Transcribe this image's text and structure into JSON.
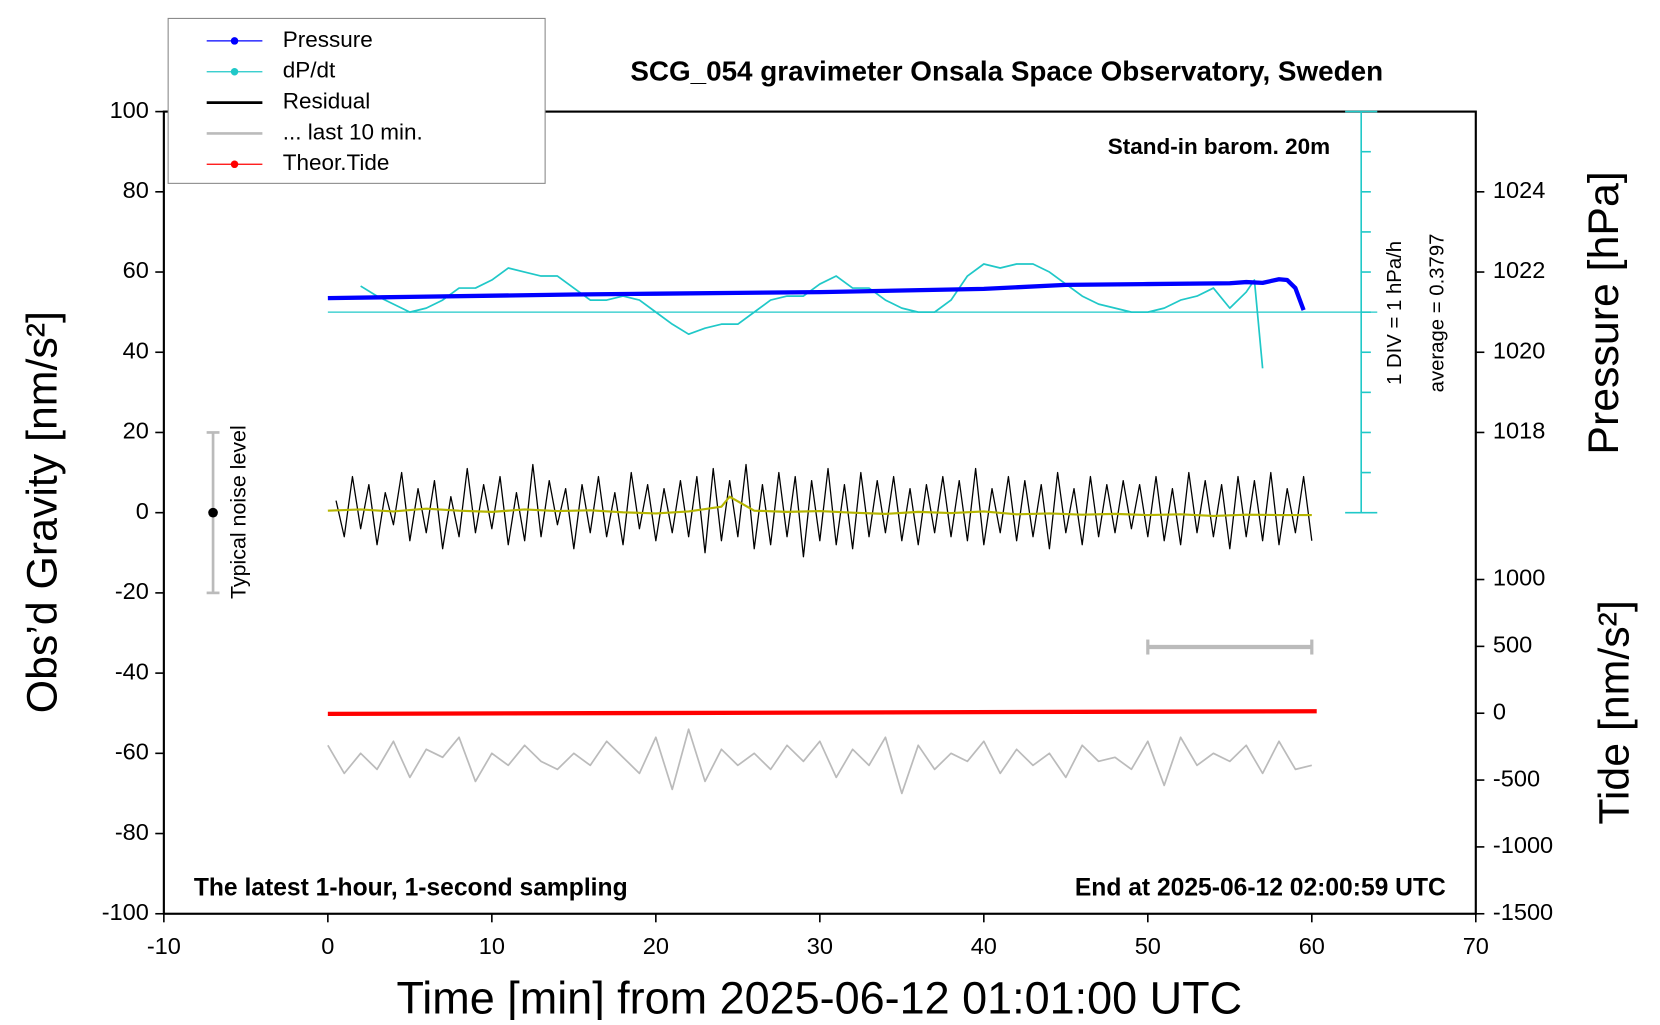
{
  "chart_data": {
    "type": "line",
    "title": "SCG_054 gravimeter Onsala Space Observatory, Sweden",
    "xlabel": "Time [min] from 2025-06-12 01:01:00 UTC",
    "ylabel": "Obs’d Gravity [nm/s²]",
    "y2label": "Pressure [hPa]",
    "y4label": "Tide [nm/s²]",
    "annotations": {
      "barometer": "Stand-in barom. 20m",
      "sampling": "The latest 1-hour, 1-second sampling",
      "end": "End at 2025-06-12 02:00:59 UTC",
      "div": "1 DIV = 1 hPa/h",
      "average_text": "average = 0.3797",
      "noise": "Typical noise level"
    },
    "xlim": [
      -10,
      70
    ],
    "xticks": [
      -10,
      0,
      10,
      20,
      30,
      40,
      50,
      60,
      70
    ],
    "ylim": [
      -100,
      100
    ],
    "yticks": [
      -100,
      -80,
      -60,
      -40,
      -20,
      0,
      20,
      40,
      60,
      80,
      100
    ],
    "y2lim": [
      1006,
      1026
    ],
    "y2ticks": [
      1018,
      1020,
      1022,
      1024
    ],
    "y3lim": [
      -4.6203,
      5.3797
    ],
    "y3ticks": [
      -4.6203,
      -3.6203,
      -2.6203,
      -1.6203,
      -0.6203,
      0.3797,
      1.3797,
      2.3797,
      3.3797,
      4.3797,
      5.3797
    ],
    "average": 0.3797,
    "y4lim": [
      -1500,
      4500
    ],
    "y4ticks": [
      -1500,
      -1000,
      -500,
      0,
      500,
      1000
    ],
    "noise_bar": {
      "x": -7,
      "value": 0,
      "error": 20
    },
    "last10_bar": {
      "x": [
        50,
        60
      ],
      "y": -33.5
    },
    "series": [
      {
        "name": "Pressure",
        "color": "#0000ff",
        "axis": "y2",
        "legend_marker": true,
        "x": [
          0,
          5,
          10,
          15,
          20,
          25,
          30,
          35,
          40,
          45,
          50,
          55,
          56,
          57,
          58,
          58.5,
          59,
          59.5
        ],
        "values": [
          1021.35,
          1021.38,
          1021.41,
          1021.44,
          1021.46,
          1021.48,
          1021.5,
          1021.54,
          1021.58,
          1021.68,
          1021.7,
          1021.72,
          1021.75,
          1021.73,
          1021.82,
          1021.8,
          1021.6,
          1021.05
        ]
      },
      {
        "name": "dP/dt",
        "color": "#20c8c8",
        "axis": "y3",
        "legend_marker": true,
        "x": [
          2,
          3,
          4,
          5,
          6,
          7,
          8,
          9,
          10,
          11,
          12,
          13,
          14,
          15,
          16,
          17,
          18,
          19,
          20,
          21,
          22,
          23,
          24,
          25,
          26,
          27,
          28,
          29,
          30,
          31,
          32,
          33,
          34,
          35,
          36,
          37,
          38,
          39,
          40,
          41,
          42,
          43,
          44,
          45,
          46,
          47,
          48,
          49,
          50,
          51,
          52,
          53,
          54,
          55,
          56,
          56.5,
          57
        ],
        "values": [
          1.03,
          0.78,
          0.58,
          0.38,
          0.48,
          0.68,
          0.98,
          0.98,
          1.18,
          1.48,
          1.38,
          1.28,
          1.28,
          0.98,
          0.68,
          0.68,
          0.78,
          0.68,
          0.38,
          0.08,
          -0.17,
          -0.02,
          0.08,
          0.08,
          0.38,
          0.68,
          0.78,
          0.78,
          1.08,
          1.28,
          0.98,
          0.98,
          0.68,
          0.48,
          0.38,
          0.38,
          0.68,
          1.28,
          1.58,
          1.48,
          1.58,
          1.58,
          1.38,
          1.08,
          0.78,
          0.58,
          0.48,
          0.38,
          0.38,
          0.48,
          0.68,
          0.78,
          0.98,
          0.48,
          0.88,
          1.18,
          -1.02
        ]
      },
      {
        "name": "Residual",
        "color": "#000000",
        "x": [
          0.5,
          1,
          1.5,
          2,
          2.5,
          3,
          3.5,
          4,
          4.5,
          5,
          5.5,
          6,
          6.5,
          7,
          7.5,
          8,
          8.5,
          9,
          9.5,
          10,
          10.5,
          11,
          11.5,
          12,
          12.5,
          13,
          13.5,
          14,
          14.5,
          15,
          15.5,
          16,
          16.5,
          17,
          17.5,
          18,
          18.5,
          19,
          19.5,
          20,
          20.5,
          21,
          21.5,
          22,
          22.5,
          23,
          23.5,
          24,
          24.5,
          25,
          25.5,
          26,
          26.5,
          27,
          27.5,
          28,
          28.5,
          29,
          29.5,
          30,
          30.5,
          31,
          31.5,
          32,
          32.5,
          33,
          33.5,
          34,
          34.5,
          35,
          35.5,
          36,
          36.5,
          37,
          37.5,
          38,
          38.5,
          39,
          39.5,
          40,
          40.5,
          41,
          41.5,
          42,
          42.5,
          43,
          43.5,
          44,
          44.5,
          45,
          45.5,
          46,
          46.5,
          47,
          47.5,
          48,
          48.5,
          49,
          49.5,
          50,
          50.5,
          51,
          51.5,
          52,
          52.5,
          53,
          53.5,
          54,
          54.5,
          55,
          55.5,
          56,
          56.5,
          57,
          57.5,
          58,
          58.5,
          59,
          59.5,
          60
        ],
        "values": [
          3,
          -6,
          9,
          -4,
          7,
          -8,
          5,
          -3,
          10,
          -7,
          6,
          -5,
          8,
          -9,
          4,
          -6,
          11,
          -5,
          7,
          -4,
          9,
          -8,
          5,
          -7,
          12,
          -6,
          8,
          -3,
          6,
          -9,
          7,
          -5,
          9,
          -6,
          5,
          -8,
          10,
          -4,
          7,
          -7,
          6,
          -5,
          8,
          -6,
          9,
          -10,
          11,
          -7,
          8,
          -6,
          12,
          -9,
          7,
          -8,
          10,
          -6,
          9,
          -11,
          8,
          -7,
          11,
          -8,
          7,
          -9,
          10,
          -6,
          8,
          -5,
          9,
          -7,
          6,
          -8,
          7,
          -5,
          9,
          -6,
          8,
          -7,
          11,
          -8,
          6,
          -5,
          9,
          -7,
          8,
          -6,
          7,
          -9,
          10,
          -5,
          6,
          -8,
          9,
          -6,
          7,
          -5,
          8,
          -4,
          7,
          -6,
          9,
          -7,
          6,
          -8,
          10,
          -5,
          8,
          -6,
          7,
          -9,
          9,
          -6,
          8,
          -7,
          10,
          -8,
          6,
          -5,
          9,
          -7
        ]
      },
      {
        "name": "... last 10 min.",
        "color": "#bbbbbb",
        "x": [
          0,
          1,
          2,
          3,
          4,
          5,
          6,
          7,
          8,
          9,
          10,
          11,
          12,
          13,
          14,
          15,
          16,
          17,
          18,
          19,
          20,
          21,
          22,
          23,
          24,
          25,
          26,
          27,
          28,
          29,
          30,
          31,
          32,
          33,
          34,
          35,
          36,
          37,
          38,
          39,
          40,
          41,
          42,
          43,
          44,
          45,
          46,
          47,
          48,
          49,
          50,
          51,
          52,
          53,
          54,
          55,
          56,
          57,
          58,
          59,
          60
        ],
        "values": [
          -58,
          -65,
          -60,
          -64,
          -57,
          -66,
          -59,
          -61,
          -56,
          -67,
          -60,
          -63,
          -58,
          -62,
          -64,
          -60,
          -63,
          -57,
          -61,
          -65,
          -56,
          -69,
          -54,
          -67,
          -59,
          -63,
          -60,
          -64,
          -58,
          -62,
          -57,
          -66,
          -59,
          -63,
          -56,
          -70,
          -58,
          -64,
          -60,
          -62,
          -57,
          -65,
          -59,
          -63,
          -60,
          -66,
          -58,
          -62,
          -61,
          -64,
          -57,
          -68,
          -56,
          -63,
          -60,
          -62,
          -58,
          -65,
          -57,
          -64,
          -63
        ]
      },
      {
        "name": "Theor.Tide",
        "color": "#ff0000",
        "axis": "y4",
        "legend_marker": true,
        "x": [
          0,
          60.3
        ],
        "values": [
          -5,
          15
        ]
      },
      {
        "color": "#b5b500",
        "x": [
          0,
          2,
          4,
          6,
          8,
          10,
          12,
          14,
          16,
          18,
          20,
          22,
          24,
          24.5,
          26,
          28,
          30,
          32,
          34,
          36,
          38,
          40,
          42,
          44,
          46,
          48,
          50,
          52,
          54,
          56,
          58,
          60
        ],
        "values": [
          0.5,
          0.8,
          0.3,
          1,
          0.5,
          0.2,
          0.8,
          0.4,
          0.6,
          0.1,
          -0.2,
          0.3,
          1.5,
          4,
          0.5,
          0.2,
          0.4,
          0,
          -0.3,
          0.2,
          -0.1,
          0.3,
          -0.4,
          -0.2,
          -0.5,
          -0.3,
          -0.6,
          -0.4,
          -0.8,
          -0.5,
          -0.6,
          -0.6
        ]
      }
    ]
  }
}
